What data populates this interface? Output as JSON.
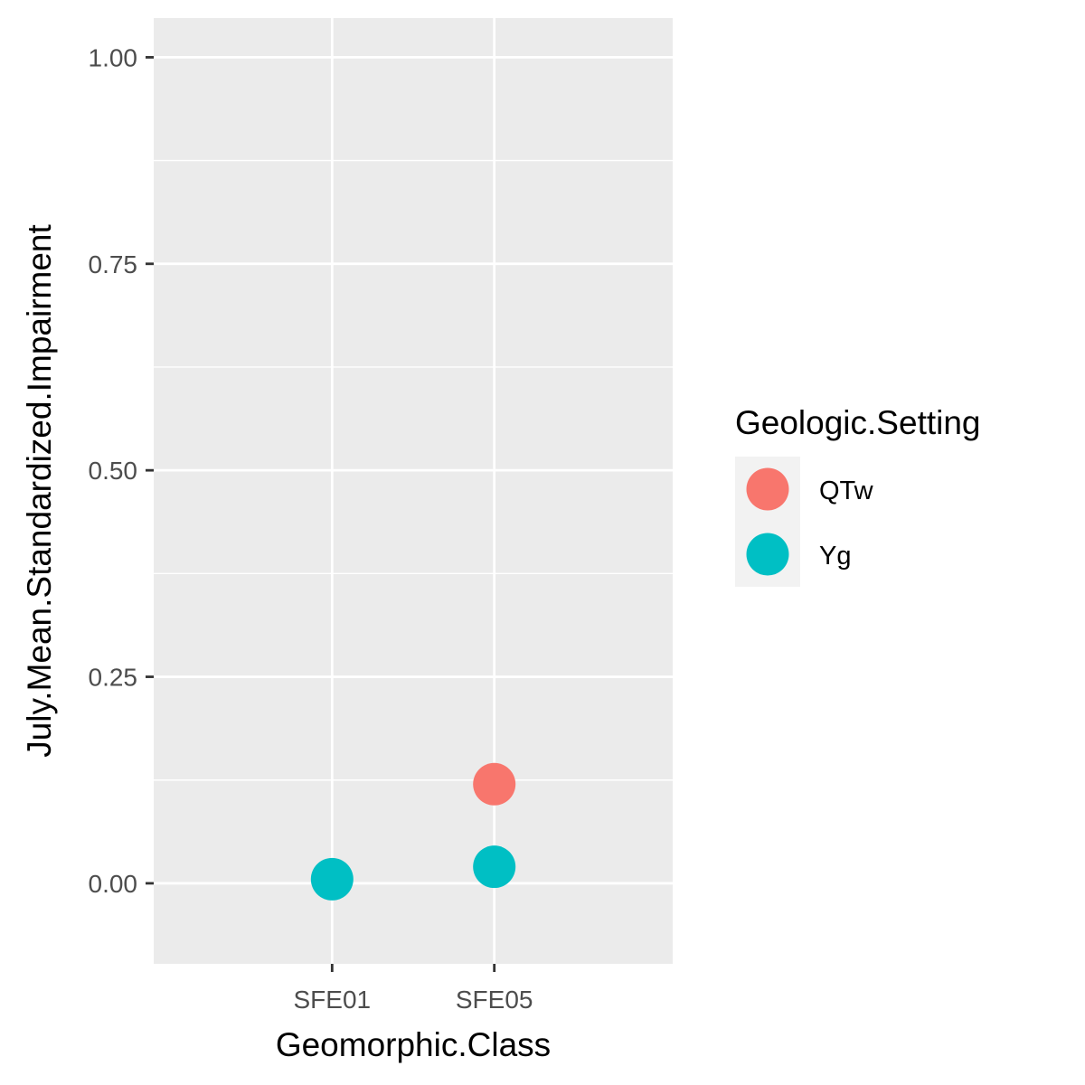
{
  "chart_data": {
    "type": "scatter",
    "xlabel": "Geomorphic.Class",
    "ylabel": "July.Mean.Standardized.Impairment",
    "categories": [
      "SFE01",
      "SFE05"
    ],
    "ylim": [
      -0.0975,
      1.0475
    ],
    "yticks": [
      0.0,
      0.25,
      0.5,
      0.75,
      1.0
    ],
    "ytick_labels": [
      "0.00",
      "0.25",
      "0.50",
      "0.75",
      "1.00"
    ],
    "grid": true,
    "legend": {
      "title": "Geologic.Setting",
      "placement": "right"
    },
    "series": [
      {
        "name": "QTw",
        "color": "#F8766D",
        "points": [
          {
            "x": "SFE05",
            "y": 0.12
          }
        ]
      },
      {
        "name": "Yg",
        "color": "#00BFC4",
        "points": [
          {
            "x": "SFE01",
            "y": 0.005
          },
          {
            "x": "SFE05",
            "y": 0.02
          }
        ]
      }
    ]
  }
}
